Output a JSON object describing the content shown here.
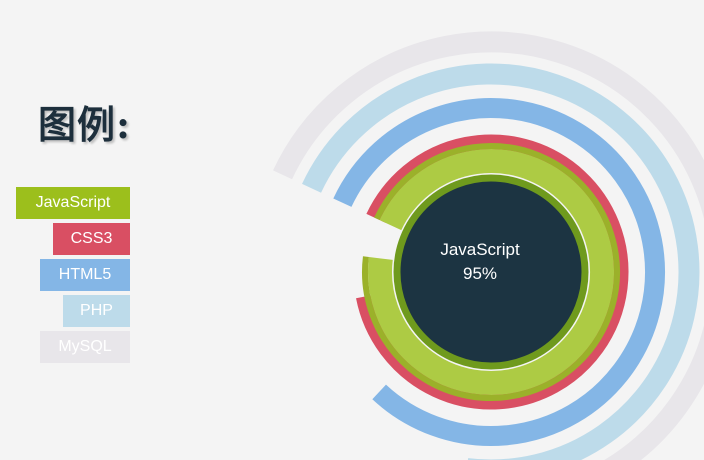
{
  "legend": {
    "title": "图例:",
    "items": [
      {
        "label": "JavaScript",
        "color": "#9cbf1c"
      },
      {
        "label": "CSS3",
        "color": "#d94f63"
      },
      {
        "label": "HTML5",
        "color": "#84b6e6"
      },
      {
        "label": "PHP",
        "color": "#bddbea"
      },
      {
        "label": "MySQL",
        "color": "#e8e6ea"
      }
    ]
  },
  "chart_data": {
    "type": "radial-bar",
    "series": [
      {
        "name": "JavaScript",
        "value": 95,
        "color": "#adcb44"
      },
      {
        "name": "CSS3",
        "value": 90,
        "color": "#d94f63"
      },
      {
        "name": "HTML5",
        "value": 80,
        "color": "#84b6e6"
      },
      {
        "name": "PHP",
        "value": 70,
        "color": "#bddbea"
      },
      {
        "name": "MySQL",
        "value": 60,
        "color": "#e8e6ea"
      }
    ],
    "center": {
      "label": "JavaScript",
      "value": "95%",
      "color": "#1c3442"
    }
  }
}
